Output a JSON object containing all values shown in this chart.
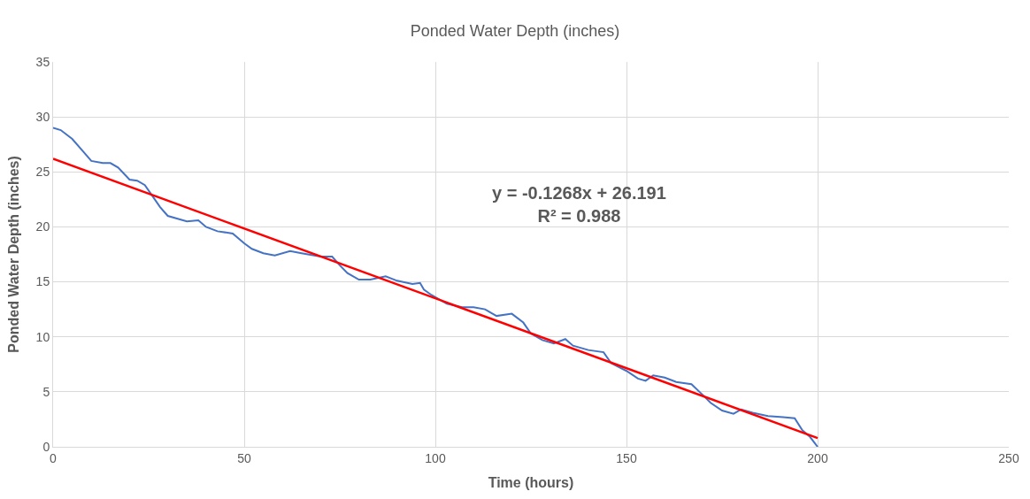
{
  "chart_data": {
    "type": "line",
    "title": "Ponded Water Depth (inches)",
    "xlabel": "Time (hours)",
    "ylabel": "Ponded Water Depth (inches)",
    "xlim": [
      0,
      250
    ],
    "xticks": [
      0,
      50,
      100,
      150,
      200,
      250
    ],
    "ylim": [
      0,
      35
    ],
    "yticks": [
      0,
      5,
      10,
      15,
      20,
      25,
      30,
      35
    ],
    "grid": true,
    "annotations": [
      "y = -0.1268x + 26.191",
      "R² = 0.988"
    ],
    "series": [
      {
        "color": "#4472c4",
        "x": [
          0,
          2,
          5,
          8,
          10,
          13,
          15,
          17,
          20,
          22,
          24,
          26,
          28,
          30,
          35,
          38,
          40,
          43,
          47,
          50,
          52,
          55,
          58,
          62,
          65,
          70,
          73,
          75,
          77,
          80,
          83,
          87,
          90,
          94,
          96,
          97,
          99,
          103,
          107,
          110,
          113,
          116,
          120,
          123,
          125,
          128,
          131,
          134,
          136,
          140,
          144,
          146,
          150,
          153,
          155,
          157,
          160,
          163,
          167,
          170,
          172,
          175,
          178,
          180,
          183,
          187,
          191,
          194,
          196,
          198,
          200
        ],
        "values": [
          29,
          28.8,
          28,
          26.8,
          26,
          25.8,
          25.8,
          25.4,
          24.3,
          24.2,
          23.8,
          22.8,
          21.8,
          21,
          20.5,
          20.6,
          20,
          19.6,
          19.4,
          18.5,
          18,
          17.6,
          17.4,
          17.8,
          17.6,
          17.3,
          17.3,
          16.5,
          15.8,
          15.2,
          15.2,
          15.5,
          15.1,
          14.8,
          14.9,
          14.3,
          13.8,
          13,
          12.7,
          12.7,
          12.5,
          11.9,
          12.1,
          11.3,
          10.3,
          9.7,
          9.4,
          9.8,
          9.2,
          8.8,
          8.6,
          7.6,
          6.9,
          6.2,
          6,
          6.5,
          6.3,
          5.9,
          5.7,
          4.7,
          4.0,
          3.3,
          3.0,
          3.4,
          3.1,
          2.8,
          2.7,
          2.6,
          1.5,
          0.9,
          0
        ]
      },
      {
        "type": "line",
        "color": "#ff0000",
        "x": [
          0,
          200
        ],
        "values": [
          26.2,
          0.8
        ]
      }
    ]
  }
}
